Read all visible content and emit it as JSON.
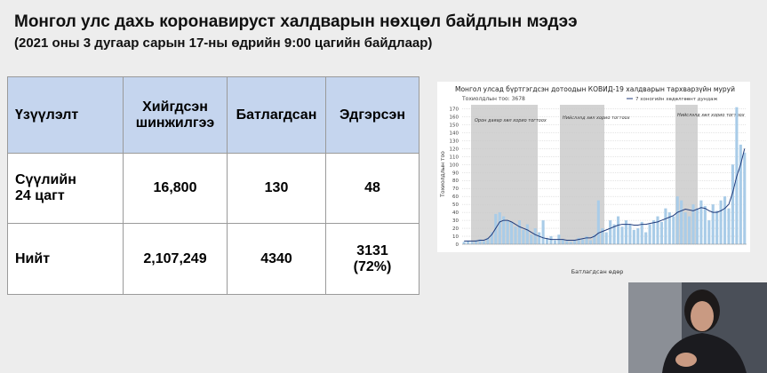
{
  "header": {
    "title": "Монгол улс дахь коронавируст халдварын нөхцөл байдлын мэдээ",
    "subtitle": "(2021 оны 3 дугаар сарын 17-ны өдрийн 9:00 цагийн байдлаар)"
  },
  "table": {
    "header": [
      "Үзүүлэлт",
      "Хийгдсэн шинжилгээ",
      "Батлагдсан",
      "Эдгэрсэн"
    ],
    "rows": [
      [
        "Сүүлийн 24 цагт",
        "16,800",
        "130",
        "48"
      ],
      [
        "Нийт",
        "2,107,249",
        "4340",
        "3131 (72%)"
      ]
    ]
  },
  "chart_data": {
    "type": "bar",
    "title": "Монгол улсад бүртгэгдсэн дотоодын КОВИД-19 халдварын тархварзүйн муруй",
    "subtitle": "Тохиолдлын тоо: 3678",
    "y_label": "Тохиолдлын тоо",
    "x_label": "Батлагдсан өдөр",
    "annotations": [
      "Орон даяар хөл хорио тогтоох",
      "Нийслэлд хөл хорио тогтоох",
      "Нийслэлд хөл хорио тогтоох"
    ],
    "ylim": [
      0,
      175
    ],
    "yticks": [
      0,
      10,
      20,
      30,
      40,
      50,
      60,
      70,
      80,
      90,
      100,
      110,
      120,
      130,
      140,
      150,
      160,
      170
    ],
    "grid": true,
    "series": [
      {
        "color": "#a9cce8",
        "values": [
          3,
          4,
          3,
          5,
          6,
          4,
          8,
          15,
          38,
          40,
          35,
          30,
          28,
          22,
          30,
          18,
          25,
          12,
          20,
          15,
          30,
          8,
          10,
          5,
          12,
          6,
          4,
          3,
          5,
          8,
          6,
          10,
          5,
          12,
          55,
          20,
          15,
          30,
          25,
          35,
          22,
          30,
          25,
          18,
          20,
          28,
          15,
          25,
          30,
          35,
          28,
          45,
          40,
          35,
          60,
          55,
          40,
          35,
          50,
          45,
          55,
          48,
          30,
          50,
          42,
          55,
          60,
          45,
          100,
          172,
          125,
          115
        ]
      },
      {
        "name": "7 хоногийн хөдөлгөөнт дундаж",
        "type": "line",
        "color": "#1f3a7a",
        "values": [
          4,
          4,
          4,
          4,
          5,
          5,
          7,
          12,
          20,
          28,
          30,
          30,
          28,
          25,
          22,
          20,
          18,
          15,
          12,
          10,
          8,
          7,
          6,
          6,
          6,
          6,
          5,
          5,
          5,
          6,
          7,
          8,
          8,
          10,
          14,
          16,
          18,
          20,
          22,
          24,
          25,
          25,
          25,
          24,
          24,
          25,
          25,
          26,
          27,
          28,
          30,
          32,
          34,
          36,
          40,
          42,
          44,
          43,
          42,
          44,
          46,
          45,
          42,
          40,
          40,
          42,
          45,
          50,
          65,
          85,
          100,
          120
        ]
      }
    ]
  }
}
